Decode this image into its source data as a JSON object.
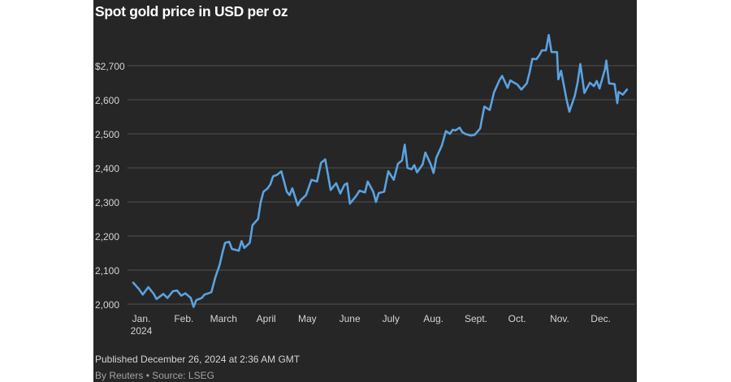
{
  "title": "Spot gold price in USD per oz",
  "footer": {
    "published": "Published December 26, 2024 at 2:36 AM GMT",
    "byline": "By Reuters • Source: LSEG"
  },
  "colors": {
    "background": "#262626",
    "line": "#5aa2e0",
    "grid": "#505050",
    "text": "#d4d4d4"
  },
  "chart_data": {
    "type": "line",
    "title": "Spot gold price in USD per oz",
    "ylim": [
      2000,
      2800
    ],
    "grid": true,
    "y_ticks": [
      {
        "value": 2000,
        "label": "2,000"
      },
      {
        "value": 2100,
        "label": "2,100"
      },
      {
        "value": 2200,
        "label": "2,200"
      },
      {
        "value": 2300,
        "label": "2,300"
      },
      {
        "value": 2400,
        "label": "2,400"
      },
      {
        "value": 2500,
        "label": "2,500"
      },
      {
        "value": 2600,
        "label": "2,600"
      },
      {
        "value": 2700,
        "label": "$2,700"
      }
    ],
    "x_ticks": [
      {
        "date": "2024-01-01",
        "label": "Jan.",
        "sublabel": "2024"
      },
      {
        "date": "2024-02-01",
        "label": "Feb."
      },
      {
        "date": "2024-03-01",
        "label": "March"
      },
      {
        "date": "2024-04-01",
        "label": "April"
      },
      {
        "date": "2024-05-01",
        "label": "May"
      },
      {
        "date": "2024-06-01",
        "label": "June"
      },
      {
        "date": "2024-07-01",
        "label": "July"
      },
      {
        "date": "2024-08-01",
        "label": "Aug."
      },
      {
        "date": "2024-09-01",
        "label": "Sept."
      },
      {
        "date": "2024-10-01",
        "label": "Oct."
      },
      {
        "date": "2024-11-01",
        "label": "Nov."
      },
      {
        "date": "2024-12-01",
        "label": "Dec."
      }
    ],
    "series": [
      {
        "values": [
          [
            "2024-01-01",
            2063
          ],
          [
            "2024-01-05",
            2045
          ],
          [
            "2024-01-08",
            2028
          ],
          [
            "2024-01-12",
            2050
          ],
          [
            "2024-01-16",
            2030
          ],
          [
            "2024-01-18",
            2015
          ],
          [
            "2024-01-23",
            2030
          ],
          [
            "2024-01-26",
            2018
          ],
          [
            "2024-01-30",
            2038
          ],
          [
            "2024-02-02",
            2040
          ],
          [
            "2024-02-05",
            2025
          ],
          [
            "2024-02-08",
            2032
          ],
          [
            "2024-02-12",
            2018
          ],
          [
            "2024-02-14",
            1992
          ],
          [
            "2024-02-16",
            2012
          ],
          [
            "2024-02-20",
            2018
          ],
          [
            "2024-02-22",
            2028
          ],
          [
            "2024-02-27",
            2035
          ],
          [
            "2024-03-01",
            2080
          ],
          [
            "2024-03-04",
            2115
          ],
          [
            "2024-03-06",
            2150
          ],
          [
            "2024-03-08",
            2180
          ],
          [
            "2024-03-11",
            2183
          ],
          [
            "2024-03-13",
            2162
          ],
          [
            "2024-03-15",
            2160
          ],
          [
            "2024-03-18",
            2157
          ],
          [
            "2024-03-20",
            2185
          ],
          [
            "2024-03-22",
            2165
          ],
          [
            "2024-03-26",
            2180
          ],
          [
            "2024-03-28",
            2232
          ],
          [
            "2024-04-01",
            2250
          ],
          [
            "2024-04-03",
            2300
          ],
          [
            "2024-04-05",
            2330
          ],
          [
            "2024-04-08",
            2340
          ],
          [
            "2024-04-10",
            2352
          ],
          [
            "2024-04-12",
            2375
          ],
          [
            "2024-04-15",
            2380
          ],
          [
            "2024-04-18",
            2390
          ],
          [
            "2024-04-22",
            2330
          ],
          [
            "2024-04-24",
            2320
          ],
          [
            "2024-04-26",
            2340
          ],
          [
            "2024-04-30",
            2290
          ],
          [
            "2024-05-02",
            2305
          ],
          [
            "2024-05-06",
            2320
          ],
          [
            "2024-05-10",
            2365
          ],
          [
            "2024-05-14",
            2360
          ],
          [
            "2024-05-17",
            2415
          ],
          [
            "2024-05-20",
            2425
          ],
          [
            "2024-05-22",
            2380
          ],
          [
            "2024-05-24",
            2335
          ],
          [
            "2024-05-28",
            2355
          ],
          [
            "2024-05-31",
            2325
          ],
          [
            "2024-06-03",
            2350
          ],
          [
            "2024-06-05",
            2355
          ],
          [
            "2024-06-07",
            2295
          ],
          [
            "2024-06-10",
            2310
          ],
          [
            "2024-06-12",
            2320
          ],
          [
            "2024-06-14",
            2333
          ],
          [
            "2024-06-18",
            2328
          ],
          [
            "2024-06-20",
            2360
          ],
          [
            "2024-06-24",
            2330
          ],
          [
            "2024-06-26",
            2300
          ],
          [
            "2024-06-28",
            2326
          ],
          [
            "2024-07-02",
            2330
          ],
          [
            "2024-07-05",
            2390
          ],
          [
            "2024-07-09",
            2365
          ],
          [
            "2024-07-12",
            2412
          ],
          [
            "2024-07-15",
            2422
          ],
          [
            "2024-07-17",
            2468
          ],
          [
            "2024-07-19",
            2400
          ],
          [
            "2024-07-22",
            2396
          ],
          [
            "2024-07-24",
            2408
          ],
          [
            "2024-07-26",
            2387
          ],
          [
            "2024-07-30",
            2410
          ],
          [
            "2024-08-01",
            2445
          ],
          [
            "2024-08-05",
            2410
          ],
          [
            "2024-08-07",
            2385
          ],
          [
            "2024-08-09",
            2430
          ],
          [
            "2024-08-13",
            2465
          ],
          [
            "2024-08-16",
            2508
          ],
          [
            "2024-08-19",
            2500
          ],
          [
            "2024-08-21",
            2512
          ],
          [
            "2024-08-23",
            2510
          ],
          [
            "2024-08-26",
            2518
          ],
          [
            "2024-08-28",
            2505
          ],
          [
            "2024-08-30",
            2500
          ],
          [
            "2024-09-03",
            2495
          ],
          [
            "2024-09-06",
            2497
          ],
          [
            "2024-09-10",
            2516
          ],
          [
            "2024-09-13",
            2580
          ],
          [
            "2024-09-17",
            2570
          ],
          [
            "2024-09-20",
            2621
          ],
          [
            "2024-09-24",
            2657
          ],
          [
            "2024-09-26",
            2670
          ],
          [
            "2024-09-30",
            2635
          ],
          [
            "2024-10-02",
            2657
          ],
          [
            "2024-10-04",
            2652
          ],
          [
            "2024-10-07",
            2645
          ],
          [
            "2024-10-10",
            2630
          ],
          [
            "2024-10-14",
            2648
          ],
          [
            "2024-10-16",
            2680
          ],
          [
            "2024-10-18",
            2720
          ],
          [
            "2024-10-21",
            2719
          ],
          [
            "2024-10-23",
            2730
          ],
          [
            "2024-10-25",
            2745
          ],
          [
            "2024-10-28",
            2745
          ],
          [
            "2024-10-30",
            2790
          ],
          [
            "2024-11-01",
            2740
          ],
          [
            "2024-11-05",
            2740
          ],
          [
            "2024-11-06",
            2660
          ],
          [
            "2024-11-08",
            2685
          ],
          [
            "2024-11-12",
            2600
          ],
          [
            "2024-11-14",
            2565
          ],
          [
            "2024-11-18",
            2612
          ],
          [
            "2024-11-20",
            2650
          ],
          [
            "2024-11-22",
            2705
          ],
          [
            "2024-11-25",
            2620
          ],
          [
            "2024-11-27",
            2635
          ],
          [
            "2024-11-29",
            2650
          ],
          [
            "2024-12-02",
            2640
          ],
          [
            "2024-12-04",
            2655
          ],
          [
            "2024-12-06",
            2633
          ],
          [
            "2024-12-10",
            2690
          ],
          [
            "2024-12-11",
            2715
          ],
          [
            "2024-12-13",
            2648
          ],
          [
            "2024-12-17",
            2646
          ],
          [
            "2024-12-19",
            2590
          ],
          [
            "2024-12-20",
            2623
          ],
          [
            "2024-12-23",
            2615
          ],
          [
            "2024-12-26",
            2630
          ]
        ]
      }
    ]
  }
}
